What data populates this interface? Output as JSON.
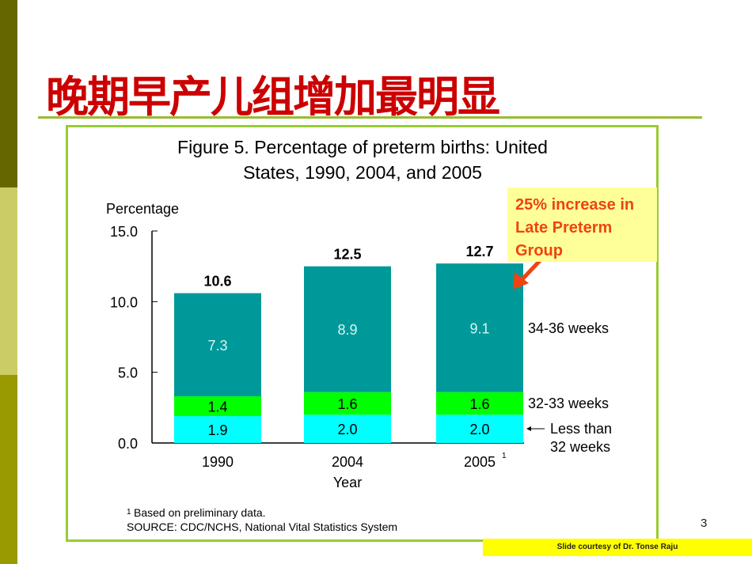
{
  "slide": {
    "title": "晚期早产儿组增加最明显",
    "page_number": "3",
    "courtesy": "Slide courtesy of Dr. Tonse Raju",
    "callout": "25% increase in Late Preterm Group",
    "colors": {
      "title": "#cc0000",
      "callout_text": "#ee4411",
      "callout_bg": "#ffff99",
      "arrow": "#ee4411"
    }
  },
  "chart_data": {
    "type": "bar",
    "stacked": true,
    "title_line1": "Figure 5. Percentage of preterm births: United",
    "title_line2": "States, 1990,  2004, and 2005",
    "ylabel": "Percentage",
    "xlabel": "Year",
    "ylim": [
      0,
      15
    ],
    "yticks": [
      "0.0",
      "5.0",
      "10.0",
      "15.0"
    ],
    "categories": [
      "1990",
      "2004",
      "2005"
    ],
    "category_superscripts": [
      "",
      "",
      "1"
    ],
    "series": [
      {
        "name": "Less than 32 weeks",
        "label_line1": "Less than",
        "label_line2": "32 weeks",
        "color": "#00ffff",
        "values": [
          1.9,
          2.0,
          2.0
        ]
      },
      {
        "name": "32-33 weeks",
        "color": "#00ff00",
        "values": [
          1.4,
          1.6,
          1.6
        ]
      },
      {
        "name": "34-36 weeks",
        "color": "#009999",
        "values": [
          7.3,
          8.9,
          9.1
        ]
      }
    ],
    "totals": [
      10.6,
      12.5,
      12.7
    ],
    "footnote": "Based on preliminary data.",
    "footnote_mark": "1",
    "source": "SOURCE: CDC/NCHS, National Vital Statistics System"
  }
}
